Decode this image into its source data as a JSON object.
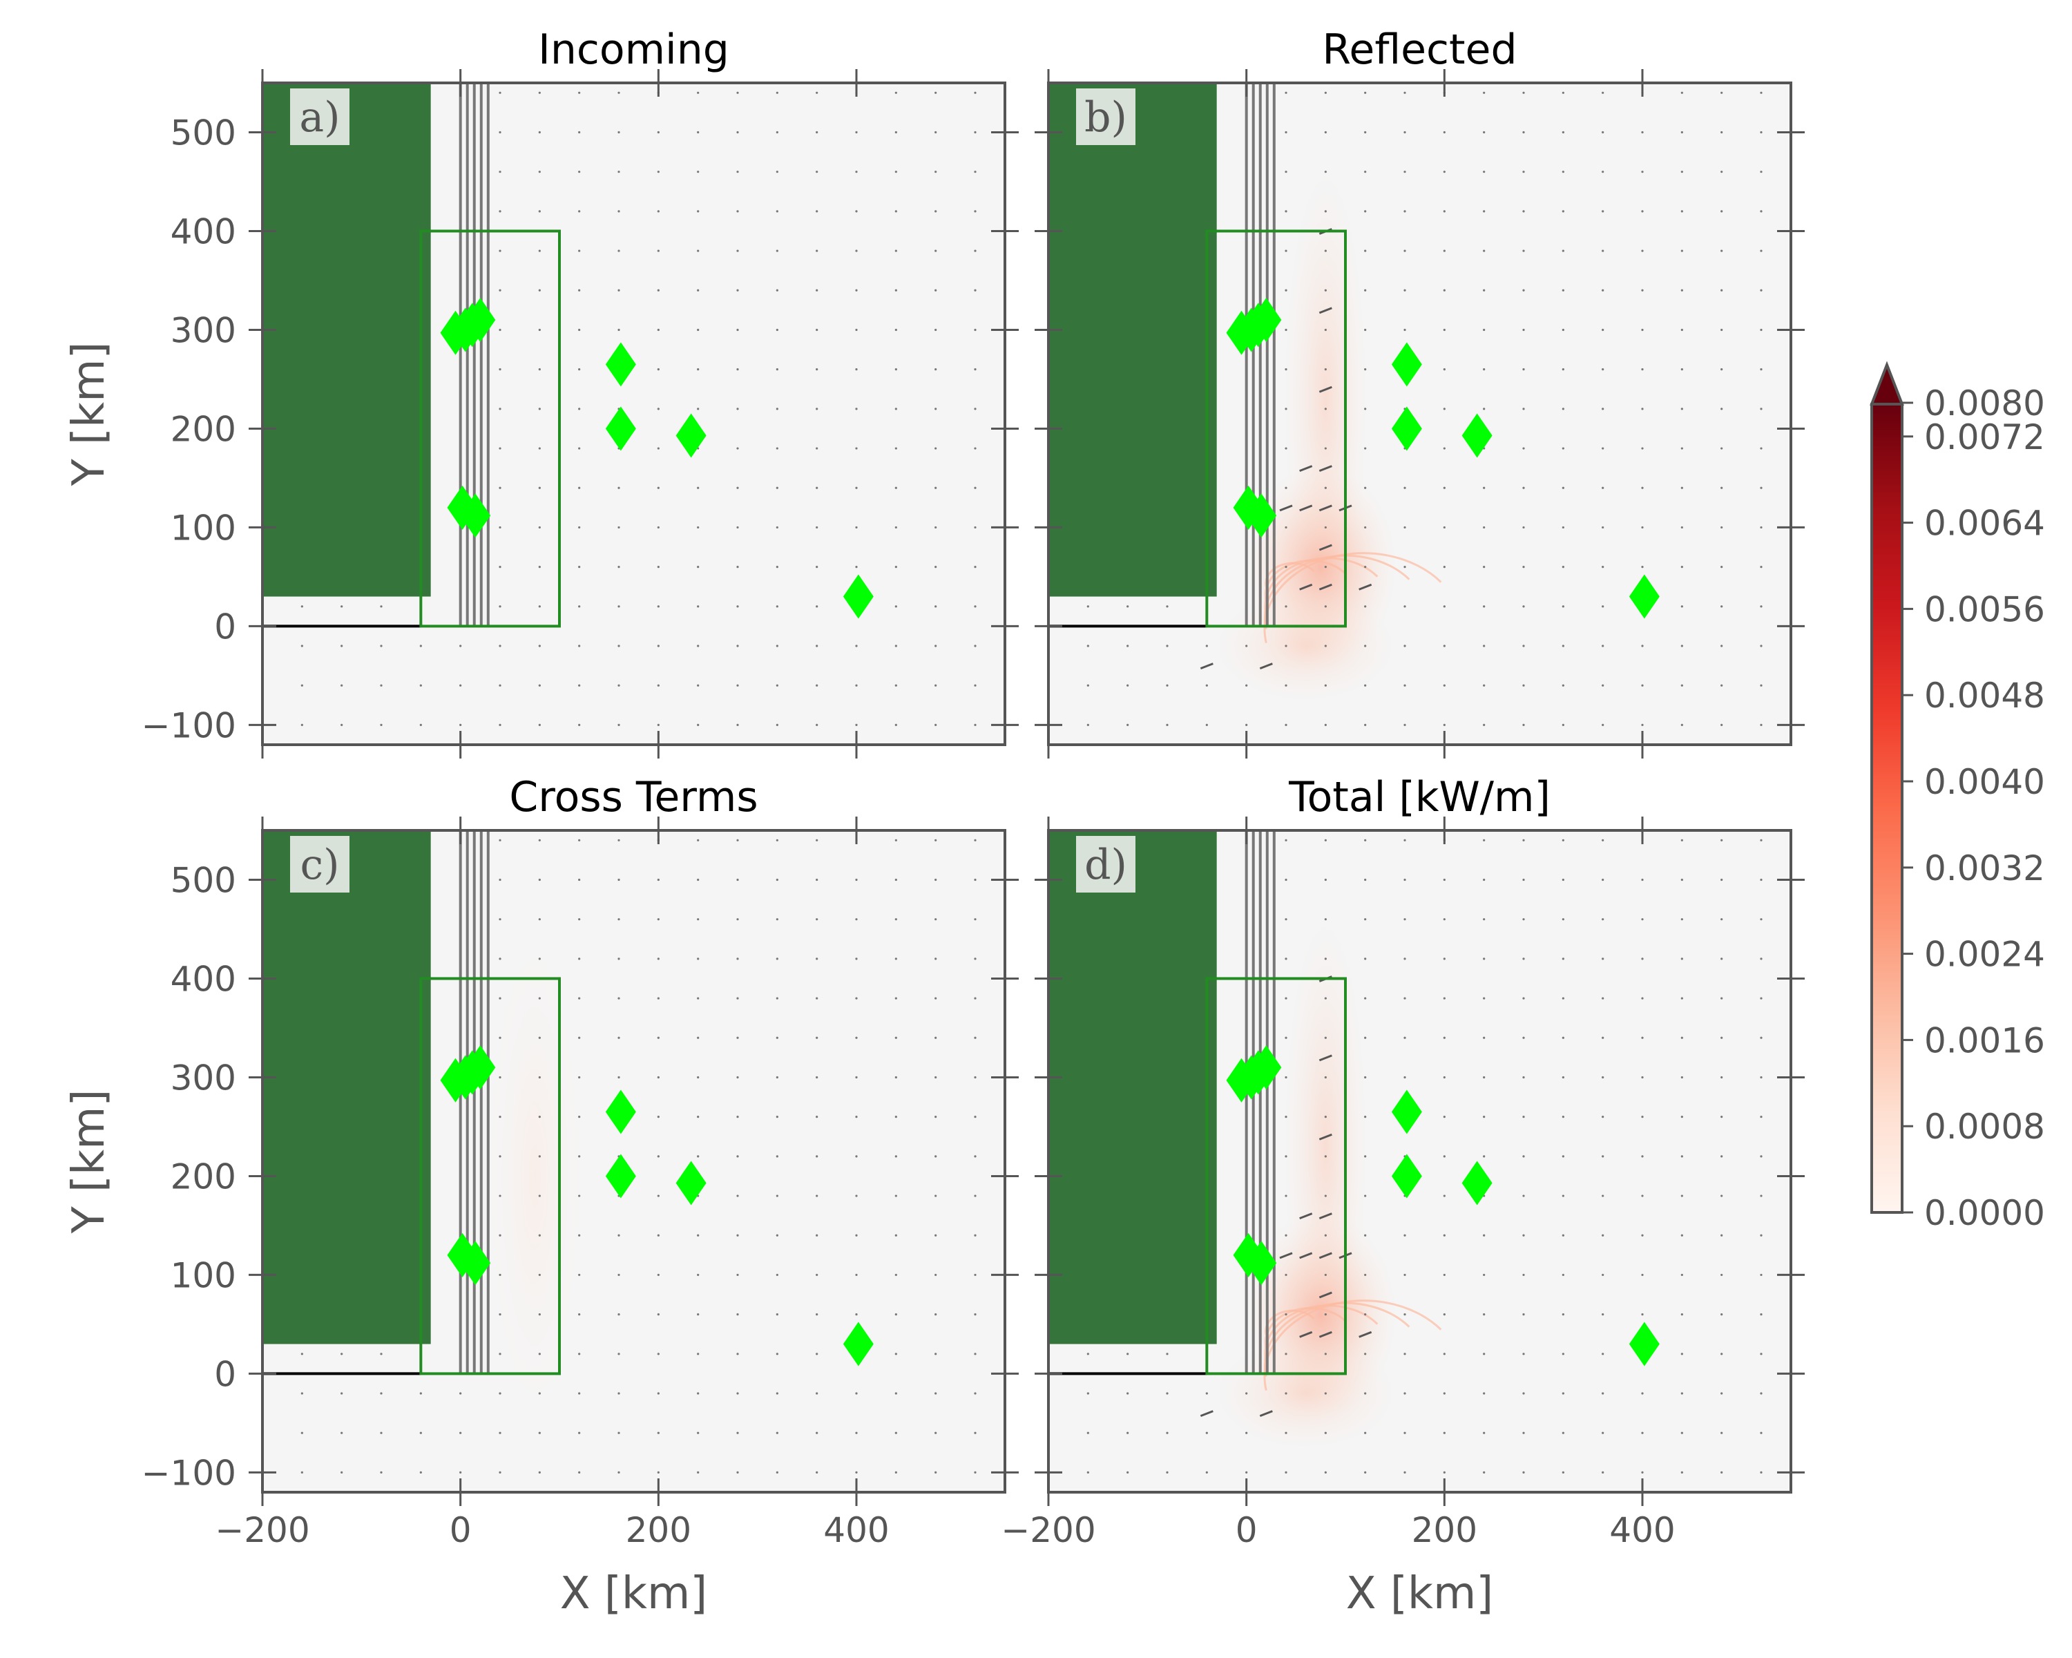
{
  "chart_data": {
    "type": "quiver-heatmap",
    "panels": [
      {
        "id": "a",
        "title": "Incoming",
        "label": "a)",
        "heat": "none"
      },
      {
        "id": "b",
        "title": "Reflected",
        "label": "b)",
        "heat": "strong"
      },
      {
        "id": "c",
        "title": "Cross Terms",
        "label": "c)",
        "heat": "faint"
      },
      {
        "id": "d",
        "title": "Total [kW/m]",
        "label": "d)",
        "heat": "strong"
      }
    ],
    "xlabel": "X [km]",
    "ylabel": "Y [km]",
    "xlim": [
      -200,
      550
    ],
    "ylim": [
      -120,
      550
    ],
    "xticks": [
      -200,
      0,
      200,
      400
    ],
    "xtick_labels": [
      "−200",
      "0",
      "200",
      "400"
    ],
    "yticks": [
      -100,
      0,
      100,
      200,
      300,
      400,
      500
    ],
    "ytick_labels": [
      "−100",
      "0",
      "100",
      "200",
      "300",
      "400",
      "500"
    ],
    "land": {
      "x": [
        -200,
        -30
      ],
      "y": [
        30,
        550
      ],
      "color": "#35743a"
    },
    "coastline": {
      "x": [
        -200,
        -40
      ],
      "y": 0
    },
    "box": {
      "x": [
        -40,
        100
      ],
      "y": [
        0,
        400
      ],
      "color": "#228b22"
    },
    "vertical_lines_x": [
      0,
      7,
      14,
      21,
      28
    ],
    "vertical_lines_y": [
      0,
      550
    ],
    "markers": [
      {
        "x": -5,
        "y": 297
      },
      {
        "x": 5,
        "y": 300
      },
      {
        "x": 12,
        "y": 305
      },
      {
        "x": 20,
        "y": 310
      },
      {
        "x": 2,
        "y": 120
      },
      {
        "x": 15,
        "y": 112
      },
      {
        "x": 162,
        "y": 265
      },
      {
        "x": 162,
        "y": 200
      },
      {
        "x": 233,
        "y": 193
      },
      {
        "x": 402,
        "y": 30
      }
    ],
    "marker_color": "#00ff00",
    "colorbar": {
      "colormap": "Reds",
      "ticks": [
        0.0,
        0.0008,
        0.0016,
        0.0024,
        0.0032,
        0.004,
        0.0048,
        0.0056,
        0.0064,
        0.0072,
        0.008
      ],
      "tick_labels": [
        "0.0000",
        "0.0008",
        "0.0016",
        "0.0024",
        "0.0032",
        "0.0040",
        "0.0048",
        "0.0056",
        "0.0064",
        "0.0072",
        "0.0080"
      ],
      "range": [
        0.0,
        0.0075
      ],
      "extend": "max"
    }
  }
}
